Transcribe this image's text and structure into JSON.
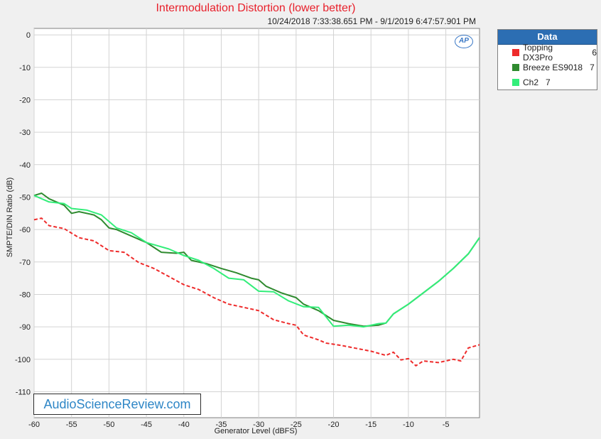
{
  "chart_data": {
    "type": "line",
    "title": "Intermodulation Distortion (lower better)",
    "subtitle": "10/24/2018 7:33:38.651 PM - 9/1/2019 6:47:57.901 PM",
    "xlabel": "Generator Level (dBFS)",
    "ylabel": "SMPTE/DIN Ratio (dB)",
    "xlim": [
      -60,
      -0.5
    ],
    "ylim": [
      -118,
      2
    ],
    "xticks": [
      -60,
      -55,
      -50,
      -45,
      -40,
      -35,
      -30,
      -25,
      -20,
      -15,
      -10,
      -5
    ],
    "yticks": [
      0,
      -10,
      -20,
      -30,
      -40,
      -50,
      -60,
      -70,
      -80,
      -90,
      -100,
      -110
    ],
    "grid": true,
    "legend_position": "right",
    "legend_title": "Data",
    "series": [
      {
        "name": "Topping DX3Pro",
        "count": "6",
        "color": "#ee2b2b",
        "style": "dashed",
        "points": [
          [
            -60,
            -57
          ],
          [
            -59,
            -56.5
          ],
          [
            -58,
            -58.8
          ],
          [
            -56,
            -59.7
          ],
          [
            -54,
            -62.5
          ],
          [
            -52,
            -63.5
          ],
          [
            -50,
            -66.5
          ],
          [
            -48,
            -67
          ],
          [
            -46,
            -70.2
          ],
          [
            -44,
            -72
          ],
          [
            -42,
            -74.5
          ],
          [
            -40,
            -77
          ],
          [
            -38,
            -78.5
          ],
          [
            -36,
            -81
          ],
          [
            -34,
            -83
          ],
          [
            -32,
            -84
          ],
          [
            -30,
            -85
          ],
          [
            -28,
            -87.8
          ],
          [
            -26,
            -89
          ],
          [
            -25,
            -89.5
          ],
          [
            -24,
            -92.5
          ],
          [
            -22,
            -94
          ],
          [
            -21,
            -95
          ],
          [
            -19,
            -95.7
          ],
          [
            -17,
            -96.6
          ],
          [
            -15,
            -97.5
          ],
          [
            -13,
            -98.8
          ],
          [
            -12,
            -97.8
          ],
          [
            -11,
            -100.2
          ],
          [
            -10,
            -99.8
          ],
          [
            -9,
            -102
          ],
          [
            -8,
            -100.5
          ],
          [
            -6,
            -101
          ],
          [
            -4,
            -100
          ],
          [
            -3,
            -100.5
          ],
          [
            -2,
            -96.5
          ],
          [
            -0.5,
            -95.5
          ]
        ]
      },
      {
        "name": "Breeze ES9018",
        "count": "7",
        "color": "#2f8a2f",
        "style": "solid",
        "points": [
          [
            -60,
            -49.5
          ],
          [
            -59,
            -48.8
          ],
          [
            -58,
            -50.5
          ],
          [
            -56,
            -52.5
          ],
          [
            -55,
            -55
          ],
          [
            -54,
            -54.5
          ],
          [
            -52,
            -55.5
          ],
          [
            -51,
            -57
          ],
          [
            -50,
            -59.5
          ],
          [
            -49,
            -60
          ],
          [
            -47,
            -62
          ],
          [
            -45,
            -64
          ],
          [
            -43,
            -67
          ],
          [
            -41,
            -67.3
          ],
          [
            -40,
            -67
          ],
          [
            -39,
            -69.5
          ],
          [
            -37,
            -70.5
          ],
          [
            -35,
            -72
          ],
          [
            -33,
            -73.3
          ],
          [
            -31,
            -75
          ],
          [
            -30,
            -75.5
          ],
          [
            -29,
            -77.5
          ],
          [
            -27,
            -79.5
          ],
          [
            -25,
            -81
          ],
          [
            -24,
            -83
          ],
          [
            -22,
            -85
          ],
          [
            -20,
            -88
          ],
          [
            -18,
            -89
          ],
          [
            -16,
            -89.8
          ],
          [
            -14,
            -89.5
          ],
          [
            -13,
            -88.8
          ],
          [
            -12,
            -86
          ],
          [
            -10,
            -83
          ],
          [
            -8,
            -79.5
          ],
          [
            -6,
            -76
          ],
          [
            -4,
            -72
          ],
          [
            -2,
            -67.5
          ],
          [
            -0.5,
            -62.5
          ]
        ]
      },
      {
        "name": "Ch2",
        "count": "7",
        "color": "#33ee7a",
        "style": "solid",
        "points": [
          [
            -60,
            -49.5
          ],
          [
            -58,
            -51.5
          ],
          [
            -56,
            -52
          ],
          [
            -55,
            -53.5
          ],
          [
            -53,
            -54
          ],
          [
            -51,
            -55.5
          ],
          [
            -49,
            -59.5
          ],
          [
            -47,
            -61
          ],
          [
            -45,
            -64
          ],
          [
            -42,
            -66
          ],
          [
            -40,
            -68
          ],
          [
            -38,
            -69.5
          ],
          [
            -36,
            -72
          ],
          [
            -34,
            -75
          ],
          [
            -32,
            -75.5
          ],
          [
            -30,
            -79
          ],
          [
            -28,
            -79.2
          ],
          [
            -26,
            -82
          ],
          [
            -24,
            -83.8
          ],
          [
            -22,
            -84
          ],
          [
            -20,
            -89.8
          ],
          [
            -18,
            -89.5
          ],
          [
            -16,
            -90
          ],
          [
            -14,
            -89
          ],
          [
            -13,
            -88.8
          ],
          [
            -12,
            -86
          ],
          [
            -10,
            -83
          ],
          [
            -8,
            -79.5
          ],
          [
            -6,
            -76
          ],
          [
            -4,
            -72
          ],
          [
            -2,
            -67.5
          ],
          [
            -0.5,
            -62.5
          ]
        ]
      }
    ]
  },
  "watermark": "AudioScienceReview.com",
  "logo_text": "AP"
}
